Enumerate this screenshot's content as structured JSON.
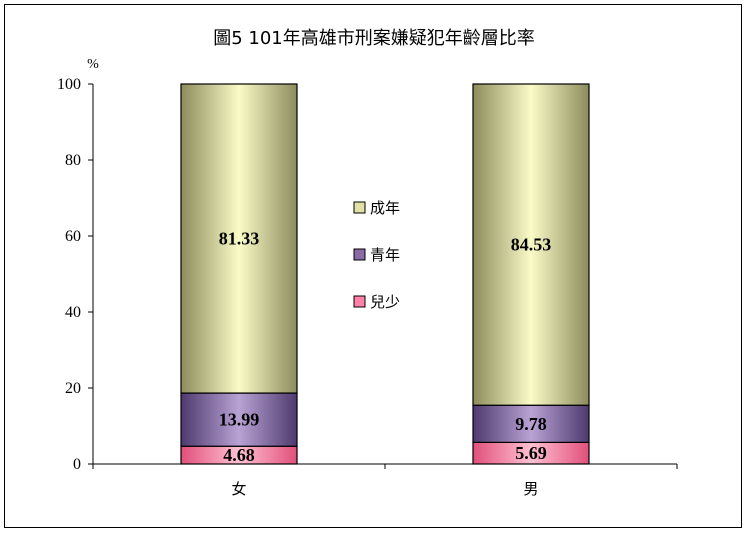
{
  "chart_data": {
    "type": "bar",
    "stacked": true,
    "title": "圖5 101年高雄市刑案嫌疑犯年齡層比率",
    "ylabel": "%",
    "xlabel": "",
    "ylim": [
      0,
      100
    ],
    "yticks": [
      0,
      20,
      40,
      60,
      80,
      100
    ],
    "categories": [
      "女",
      "男"
    ],
    "series": [
      {
        "name": "兒少",
        "values": [
          4.68,
          5.69
        ],
        "color": "#ff80a8"
      },
      {
        "name": "青年",
        "values": [
          13.99,
          9.78
        ],
        "color": "#8a6aa6"
      },
      {
        "name": "成年",
        "values": [
          81.33,
          84.53
        ],
        "color": "#e2e2a6"
      }
    ],
    "legend_order": [
      "成年",
      "青年",
      "兒少"
    ],
    "legend_position": "center",
    "grid": false
  }
}
